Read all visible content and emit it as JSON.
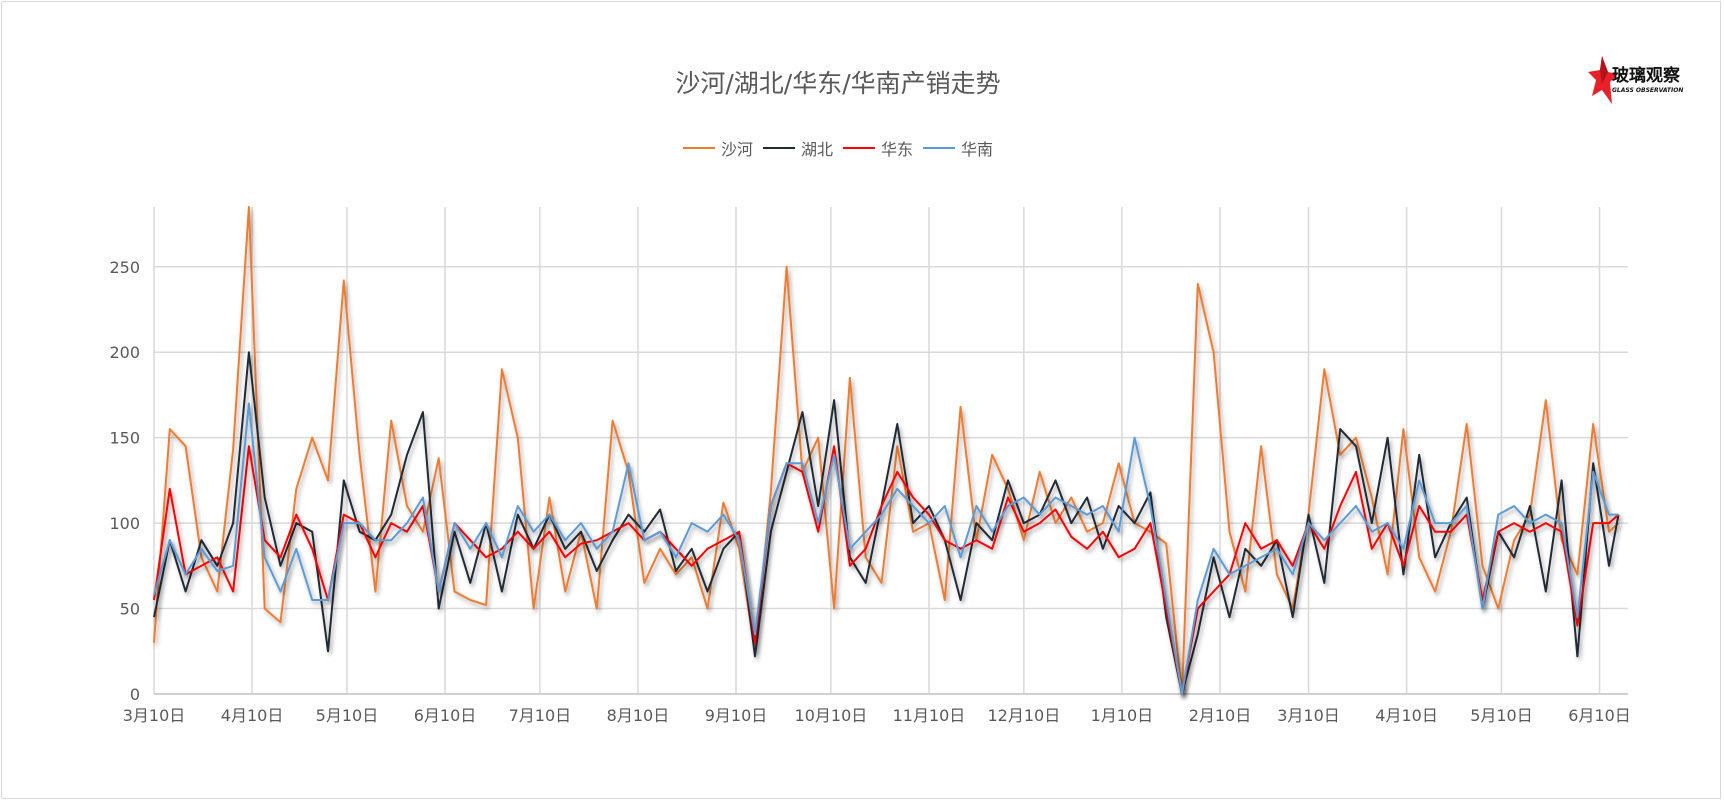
{
  "chart_data": {
    "type": "line",
    "title": "沙河/湖北/华东/华南产销走势",
    "xlabel": "",
    "ylabel": "",
    "ylim": [
      0,
      285
    ],
    "y_ticks": [
      0,
      50,
      100,
      150,
      200,
      250
    ],
    "x_ticks": [
      "3月10日",
      "4月10日",
      "5月10日",
      "6月10日",
      "7月10日",
      "8月10日",
      "9月10日",
      "10月10日",
      "11月10日",
      "12月10日",
      "1月10日",
      "2月10日",
      "3月10日",
      "4月10日",
      "5月10日",
      "6月10日"
    ],
    "grid": true,
    "legend_position": "top",
    "x": [
      "3月10日",
      "3月15日",
      "3月20日",
      "3月25日",
      "3月30日",
      "4月4日",
      "4月9日",
      "4月14日",
      "4月19日",
      "4月24日",
      "4月29日",
      "5月4日",
      "5月9日",
      "5月14日",
      "5月19日",
      "5月24日",
      "5月29日",
      "6月3日",
      "6月8日",
      "6月13日",
      "6月18日",
      "6月23日",
      "6月28日",
      "7月3日",
      "7月8日",
      "7月13日",
      "7月18日",
      "7月23日",
      "7月28日",
      "8月2日",
      "8月7日",
      "8月12日",
      "8月17日",
      "8月22日",
      "8月27日",
      "9月1日",
      "9月6日",
      "9月11日",
      "9月16日",
      "9月21日",
      "9月26日",
      "10月1日",
      "10月6日",
      "10月11日",
      "10月16日",
      "10月21日",
      "10月26日",
      "10月31日",
      "11月5日",
      "11月10日",
      "11月15日",
      "11月20日",
      "11月25日",
      "11月30日",
      "12月5日",
      "12月10日",
      "12月15日",
      "12月20日",
      "12月25日",
      "12月30日",
      "1月4日",
      "1月9日",
      "1月14日",
      "1月19日",
      "1月24日",
      "1月29日",
      "2月3日",
      "2月8日",
      "2月13日",
      "2月18日",
      "2月23日",
      "2月28日",
      "3月5日",
      "3月10日",
      "3月15日",
      "3月20日",
      "3月25日",
      "3月30日",
      "4月4日",
      "4月9日",
      "4月14日",
      "4月19日",
      "4月24日",
      "4月29日",
      "5月4日",
      "5月9日",
      "5月14日",
      "5月19日",
      "5月24日",
      "5月29日",
      "6月3日",
      "6月8日",
      "6月13日",
      "6月16日"
    ],
    "series": [
      {
        "name": "沙河",
        "color": "#ED7D31",
        "values": [
          30,
          155,
          145,
          80,
          60,
          143,
          285,
          50,
          42,
          120,
          150,
          125,
          242,
          140,
          60,
          160,
          110,
          95,
          138,
          60,
          55,
          52,
          190,
          150,
          50,
          115,
          60,
          95,
          50,
          160,
          130,
          65,
          85,
          70,
          80,
          50,
          112,
          85,
          25,
          118,
          250,
          130,
          150,
          50,
          185,
          80,
          65,
          145,
          95,
          100,
          55,
          168,
          90,
          140,
          120,
          90,
          130,
          100,
          115,
          95,
          100,
          135,
          100,
          95,
          88,
          0,
          240,
          200,
          95,
          60,
          145,
          70,
          50,
          105,
          190,
          140,
          150,
          115,
          70,
          155,
          80,
          60,
          95,
          158,
          75,
          50,
          90,
          105,
          172,
          90,
          70,
          158,
          95,
          100
        ]
      },
      {
        "name": "湖北",
        "color": "#222A35",
        "values": [
          45,
          90,
          60,
          90,
          75,
          100,
          200,
          115,
          75,
          100,
          95,
          25,
          125,
          95,
          90,
          105,
          140,
          165,
          50,
          95,
          65,
          100,
          60,
          105,
          85,
          105,
          85,
          95,
          72,
          90,
          105,
          95,
          108,
          72,
          85,
          60,
          85,
          95,
          22,
          95,
          130,
          165,
          110,
          172,
          80,
          65,
          110,
          158,
          100,
          110,
          90,
          55,
          100,
          90,
          125,
          100,
          105,
          125,
          100,
          115,
          85,
          110,
          100,
          118,
          45,
          0,
          35,
          80,
          45,
          85,
          75,
          90,
          45,
          105,
          65,
          155,
          145,
          100,
          150,
          70,
          140,
          80,
          100,
          115,
          50,
          95,
          80,
          110,
          60,
          125,
          22,
          135,
          75,
          105
        ]
      },
      {
        "name": "华东",
        "color": "#FF0000",
        "values": [
          55,
          120,
          70,
          75,
          80,
          60,
          145,
          90,
          80,
          105,
          85,
          55,
          105,
          100,
          80,
          100,
          95,
          110,
          60,
          100,
          90,
          80,
          85,
          95,
          85,
          95,
          80,
          88,
          90,
          95,
          100,
          90,
          95,
          85,
          75,
          85,
          90,
          95,
          30,
          110,
          135,
          130,
          95,
          145,
          75,
          85,
          110,
          130,
          115,
          105,
          90,
          85,
          90,
          85,
          115,
          95,
          100,
          108,
          92,
          85,
          95,
          80,
          85,
          100,
          50,
          0,
          50,
          60,
          70,
          100,
          85,
          90,
          75,
          100,
          85,
          110,
          130,
          85,
          100,
          75,
          110,
          95,
          95,
          105,
          55,
          95,
          100,
          95,
          100,
          95,
          40,
          100,
          100,
          105
        ]
      },
      {
        "name": "华南",
        "color": "#5B9BD5",
        "values": [
          58,
          90,
          70,
          85,
          72,
          75,
          170,
          80,
          60,
          85,
          55,
          55,
          100,
          100,
          90,
          90,
          100,
          115,
          60,
          100,
          85,
          100,
          80,
          110,
          95,
          105,
          90,
          100,
          85,
          95,
          135,
          90,
          95,
          80,
          100,
          95,
          105,
          90,
          35,
          110,
          135,
          135,
          100,
          140,
          85,
          95,
          105,
          120,
          110,
          100,
          110,
          80,
          110,
          95,
          110,
          115,
          105,
          115,
          110,
          105,
          110,
          95,
          150,
          110,
          55,
          0,
          55,
          85,
          70,
          75,
          80,
          85,
          70,
          100,
          90,
          100,
          110,
          95,
          100,
          85,
          125,
          100,
          100,
          110,
          50,
          105,
          110,
          100,
          105,
          100,
          45,
          130,
          105,
          105
        ]
      }
    ]
  },
  "logo": {
    "text_cn": "玻璃观察",
    "text_en": "GLASS OBSERVATION"
  }
}
